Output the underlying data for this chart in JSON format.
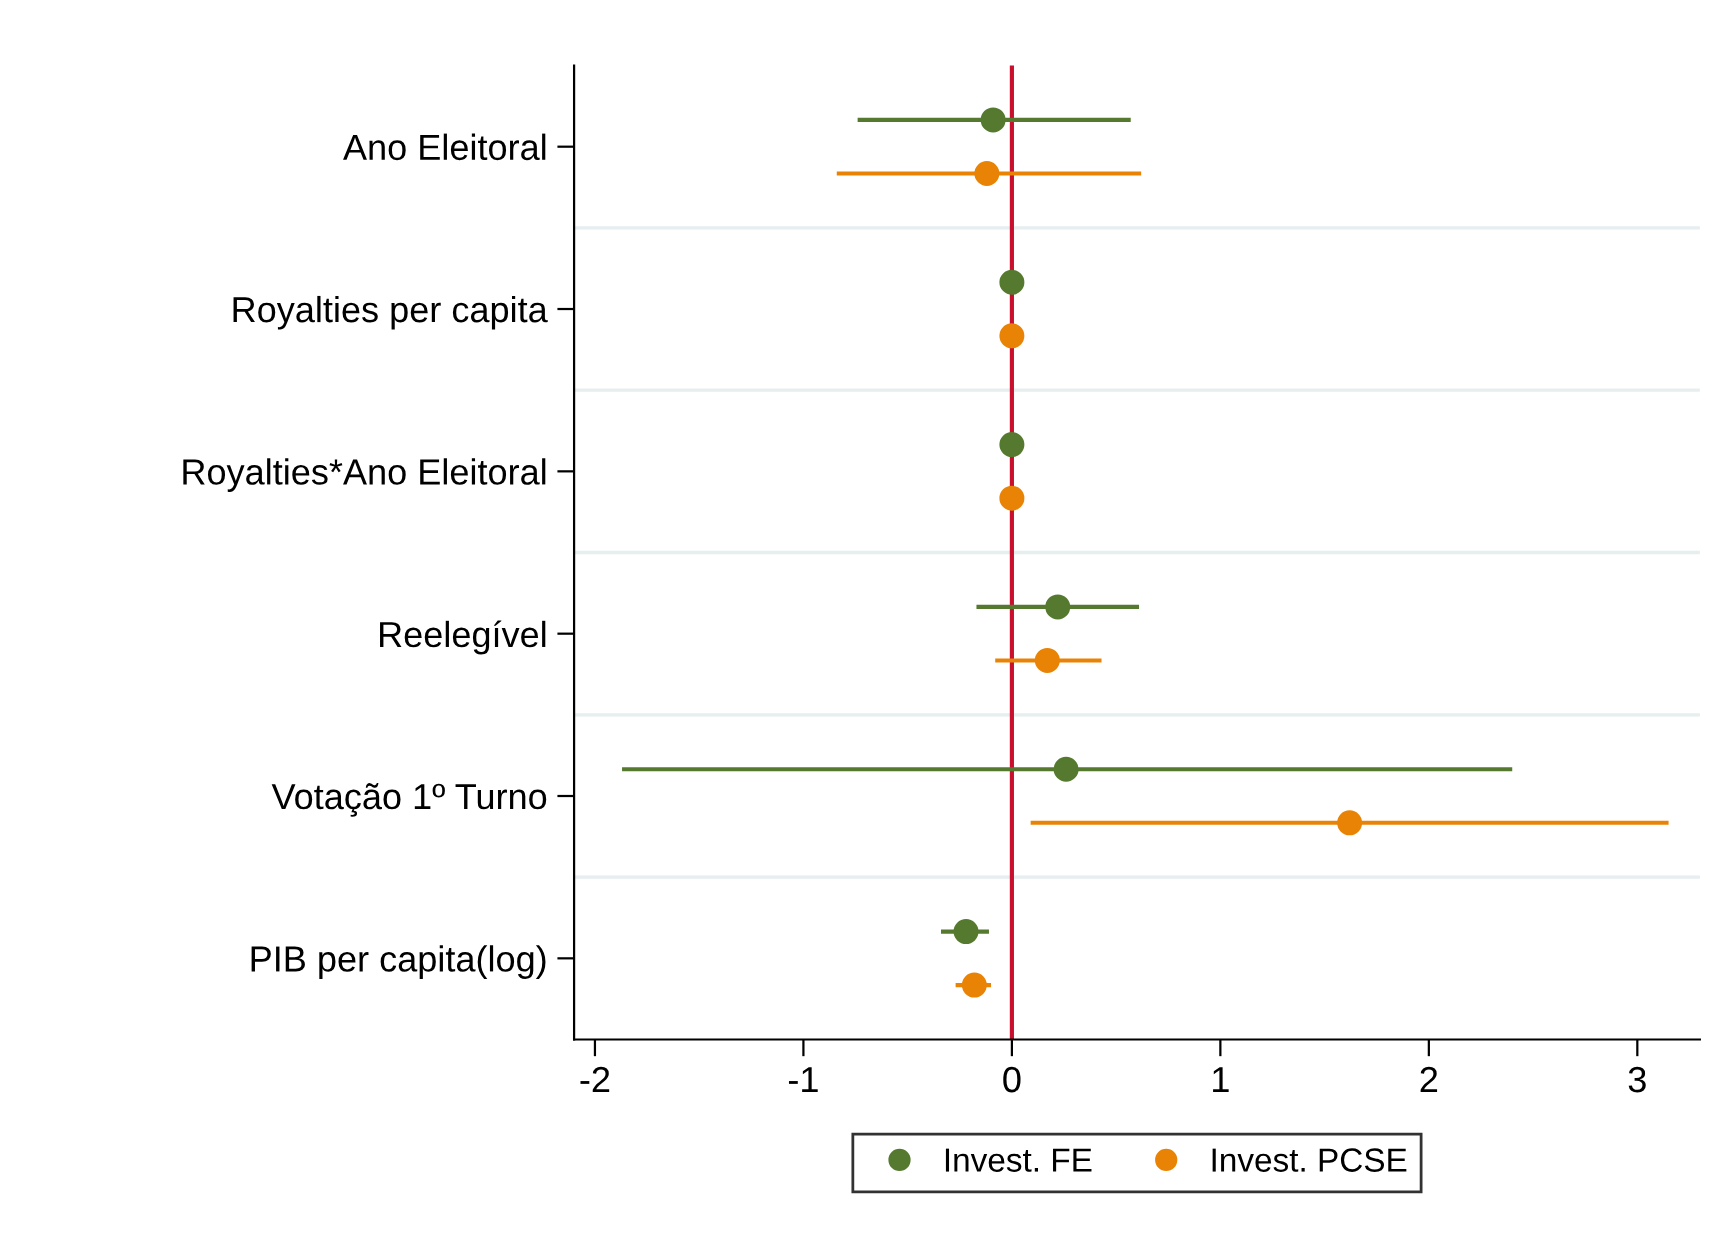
{
  "chart_data": {
    "type": "scatter",
    "orientation": "horizontal",
    "categories": [
      "Ano Eleitoral",
      "Royalties per capita",
      "Royalties*Ano Eleitoral",
      "Reelegível",
      "Votação 1º Turno",
      "PIB per capita(log)"
    ],
    "series": [
      {
        "name": "Invest. FE",
        "color": "#557a2f",
        "values": [
          -0.09,
          0,
          0,
          0.22,
          0.26,
          -0.22
        ],
        "errors": [
          [
            -0.74,
            0.57
          ],
          null,
          null,
          [
            -0.17,
            0.61
          ],
          [
            -1.87,
            2.4
          ],
          [
            -0.34,
            -0.11
          ]
        ]
      },
      {
        "name": "Invest. PCSE",
        "color": "#e98306",
        "values": [
          -0.12,
          0,
          0,
          0.17,
          1.62,
          -0.18
        ],
        "errors": [
          [
            -0.84,
            0.62
          ],
          null,
          null,
          [
            -0.08,
            0.43
          ],
          [
            0.09,
            3.15
          ],
          [
            -0.27,
            -0.1
          ]
        ]
      }
    ],
    "xlim": [
      -2.1,
      3.3
    ],
    "xticks": [
      -2,
      -1,
      0,
      1,
      2,
      3
    ],
    "ref_lines": [
      {
        "axis": "x",
        "value": 0,
        "color": "#c8102e"
      }
    ],
    "grid": "y",
    "legend": "bottom",
    "marker": "circle"
  }
}
